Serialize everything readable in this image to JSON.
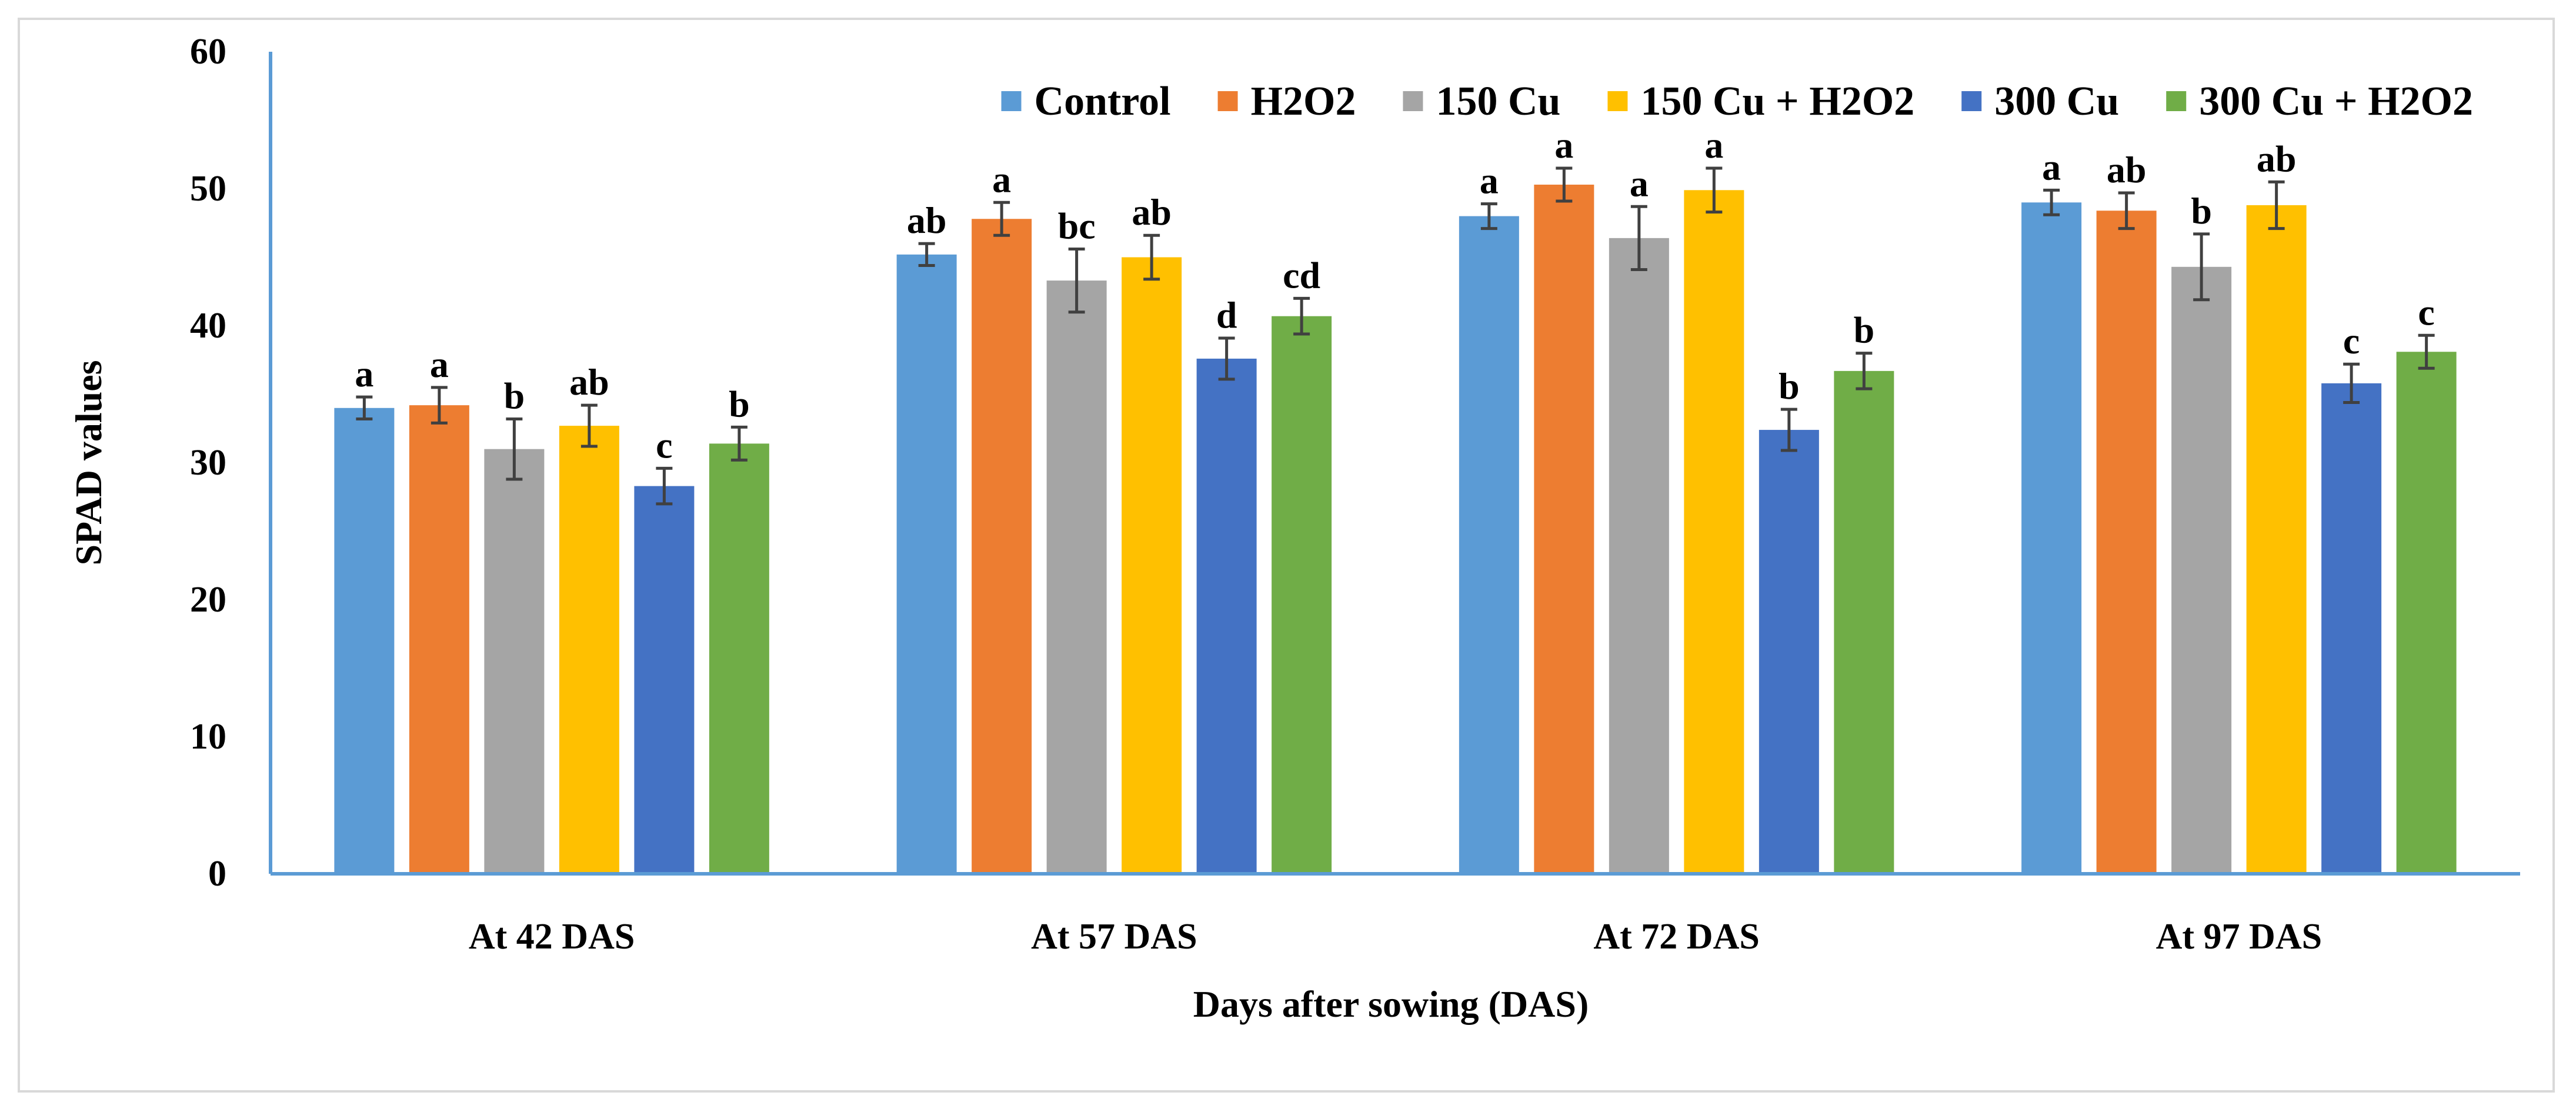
{
  "chart_data": {
    "type": "bar",
    "title": "",
    "xlabel": "Days after sowing (DAS)",
    "ylabel": "SPAD values",
    "ylim": [
      0,
      60
    ],
    "yticks": [
      0,
      10,
      20,
      30,
      40,
      50,
      60
    ],
    "grid": false,
    "legend_position": "top-right",
    "categories": [
      "At 42 DAS",
      "At 57 DAS",
      "At 72 DAS",
      "At 97 DAS"
    ],
    "series": [
      {
        "name": "Control",
        "color": "#5B9BD5",
        "values": [
          34.0,
          45.2,
          48.0,
          49.0
        ],
        "errors": [
          0.8,
          0.8,
          0.9,
          0.9
        ],
        "labels": [
          "a",
          "ab",
          "a",
          "a"
        ]
      },
      {
        "name": "H2O2",
        "color": "#ED7D31",
        "values": [
          34.2,
          47.8,
          50.3,
          48.4
        ],
        "errors": [
          1.3,
          1.2,
          1.2,
          1.3
        ],
        "labels": [
          "a",
          "a",
          "a",
          "ab"
        ]
      },
      {
        "name": "150 Cu",
        "color": "#A5A5A5",
        "values": [
          31.0,
          43.3,
          46.4,
          44.3
        ],
        "errors": [
          2.2,
          2.3,
          2.3,
          2.4
        ],
        "labels": [
          "b",
          "bc",
          "a",
          "b"
        ]
      },
      {
        "name": "150 Cu + H2O2",
        "color": "#FFC000",
        "values": [
          32.7,
          45.0,
          49.9,
          48.8
        ],
        "errors": [
          1.5,
          1.6,
          1.6,
          1.7
        ],
        "labels": [
          "ab",
          "ab",
          "a",
          "ab"
        ]
      },
      {
        "name": "300 Cu",
        "color": "#4472C4",
        "values": [
          28.3,
          37.6,
          32.4,
          35.8
        ],
        "errors": [
          1.3,
          1.5,
          1.5,
          1.4
        ],
        "labels": [
          "c",
          "d",
          "b",
          "c"
        ]
      },
      {
        "name": "300 Cu + H2O2",
        "color": "#70AD47",
        "values": [
          31.4,
          40.7,
          36.7,
          38.1
        ],
        "errors": [
          1.2,
          1.3,
          1.3,
          1.2
        ],
        "labels": [
          "b",
          "cd",
          "b",
          "c"
        ]
      }
    ]
  }
}
